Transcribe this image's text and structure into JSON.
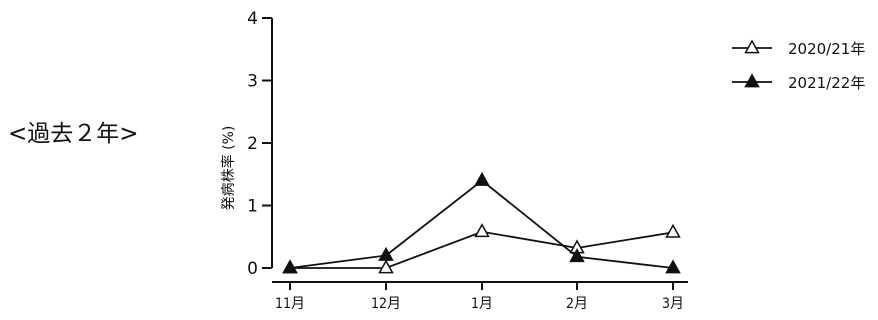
{
  "side_label": "<過去２年>",
  "chart_data": {
    "type": "line",
    "categories": [
      "11月",
      "12月",
      "1月",
      "2月",
      "3月"
    ],
    "series": [
      {
        "name": "2020/21年",
        "values": [
          0,
          0,
          0.58,
          0.32,
          0.57
        ],
        "marker": "open-triangle"
      },
      {
        "name": "2021/22年",
        "values": [
          0,
          0.2,
          1.4,
          0.18,
          0
        ],
        "marker": "filled-triangle"
      }
    ],
    "ylabel": "発病株率 (%)",
    "ylim": [
      0,
      4
    ],
    "yticks": [
      "0",
      "1",
      "2",
      "3",
      "4"
    ],
    "grid": false,
    "legend": "top-right",
    "colors": {
      "line": "#111111",
      "open_fill": "#ffffff"
    }
  }
}
